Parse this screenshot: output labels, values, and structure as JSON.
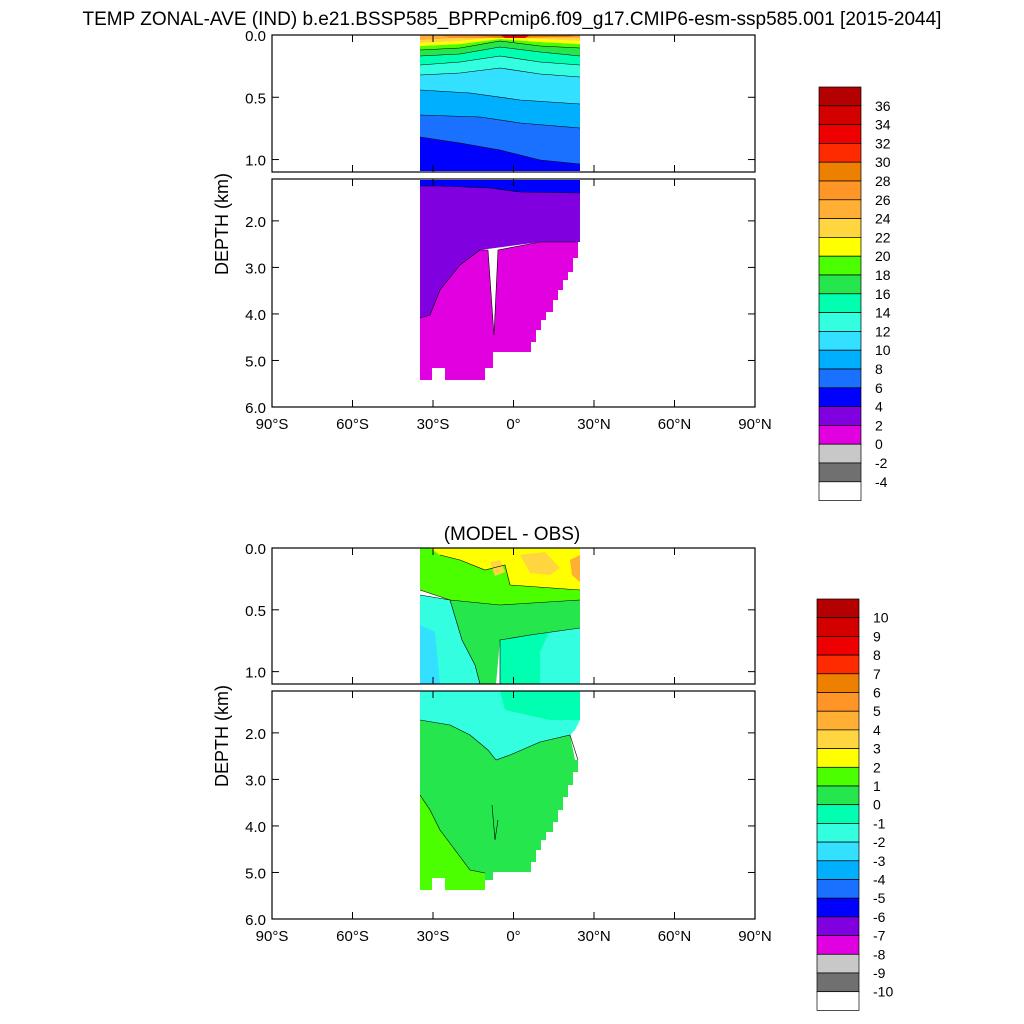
{
  "title": "TEMP ZONAL-AVE (IND) b.e21.BSSP585_BPRPcmip6.f09_g17.CMIP6-esm-ssp585.001 [2015-2044]",
  "chart_data": [
    {
      "type": "heatmap",
      "name": "temperature",
      "title": "",
      "ylabel": "DEPTH (km)",
      "xlim": [
        -90,
        90
      ],
      "ylim": [
        0,
        6
      ],
      "x_ticks": [
        -90,
        -60,
        -30,
        0,
        30,
        60,
        90
      ],
      "x_tick_labels": [
        "90°S",
        "60°S",
        "30°S",
        "0°",
        "30°N",
        "60°N",
        "90°N"
      ],
      "y_ticks_upper": [
        0.0,
        0.5,
        1.0
      ],
      "y_tick_labels_upper": [
        "0.0",
        "0.5",
        "1.0"
      ],
      "y_ticks_lower": [
        2.0,
        3.0,
        4.0,
        5.0,
        6.0
      ],
      "y_tick_labels_lower": [
        "2.0",
        "3.0",
        "4.0",
        "5.0",
        "6.0"
      ],
      "upper_panel_depth": [
        0,
        1.1
      ],
      "lower_panel_depth": [
        1.1,
        6
      ],
      "data_extent_lat": [
        -34,
        25
      ],
      "colorbar": {
        "labels": [
          "36",
          "34",
          "32",
          "30",
          "28",
          "26",
          "24",
          "22",
          "20",
          "18",
          "16",
          "14",
          "12",
          "10",
          "8",
          "6",
          "4",
          "2",
          "0",
          "-2",
          "-4"
        ],
        "colors": [
          "#b40000",
          "#d40000",
          "#ee0000",
          "#ff2b00",
          "#ee8000",
          "#ff9526",
          "#ffaf33",
          "#ffd540",
          "#ffff00",
          "#4cff00",
          "#26e64d",
          "#00ffb0",
          "#33ffe0",
          "#33e0ff",
          "#00b0ff",
          "#1a70ff",
          "#0000ff",
          "#8000e0",
          "#e000e0",
          "#c8c8c8",
          "#707070",
          "#ffffff"
        ]
      }
    },
    {
      "type": "heatmap",
      "name": "difference",
      "title": "(MODEL - OBS)",
      "ylabel": "DEPTH (km)",
      "xlim": [
        -90,
        90
      ],
      "ylim": [
        0,
        6
      ],
      "x_ticks": [
        -90,
        -60,
        -30,
        0,
        30,
        60,
        90
      ],
      "x_tick_labels": [
        "90°S",
        "60°S",
        "30°S",
        "0°",
        "30°N",
        "60°N",
        "90°N"
      ],
      "y_ticks_upper": [
        0.0,
        0.5,
        1.0
      ],
      "y_tick_labels_upper": [
        "0.0",
        "0.5",
        "1.0"
      ],
      "y_ticks_lower": [
        2.0,
        3.0,
        4.0,
        5.0,
        6.0
      ],
      "y_tick_labels_lower": [
        "2.0",
        "3.0",
        "4.0",
        "5.0",
        "6.0"
      ],
      "upper_panel_depth": [
        0,
        1.1
      ],
      "lower_panel_depth": [
        1.1,
        6
      ],
      "data_extent_lat": [
        -34,
        25
      ],
      "colorbar": {
        "labels": [
          "10",
          "9",
          "8",
          "7",
          "6",
          "5",
          "4",
          "3",
          "2",
          "1",
          "0",
          "-1",
          "-2",
          "-3",
          "-4",
          "-5",
          "-6",
          "-7",
          "-8",
          "-9",
          "-10"
        ],
        "colors": [
          "#b40000",
          "#d40000",
          "#ee0000",
          "#ff2b00",
          "#ee8000",
          "#ff9526",
          "#ffaf33",
          "#ffd540",
          "#ffff00",
          "#4cff00",
          "#26e64d",
          "#00ffb0",
          "#33ffe0",
          "#33e0ff",
          "#00b0ff",
          "#1a70ff",
          "#0000ff",
          "#8000e0",
          "#e000e0",
          "#c8c8c8",
          "#707070",
          "#ffffff"
        ]
      }
    }
  ]
}
